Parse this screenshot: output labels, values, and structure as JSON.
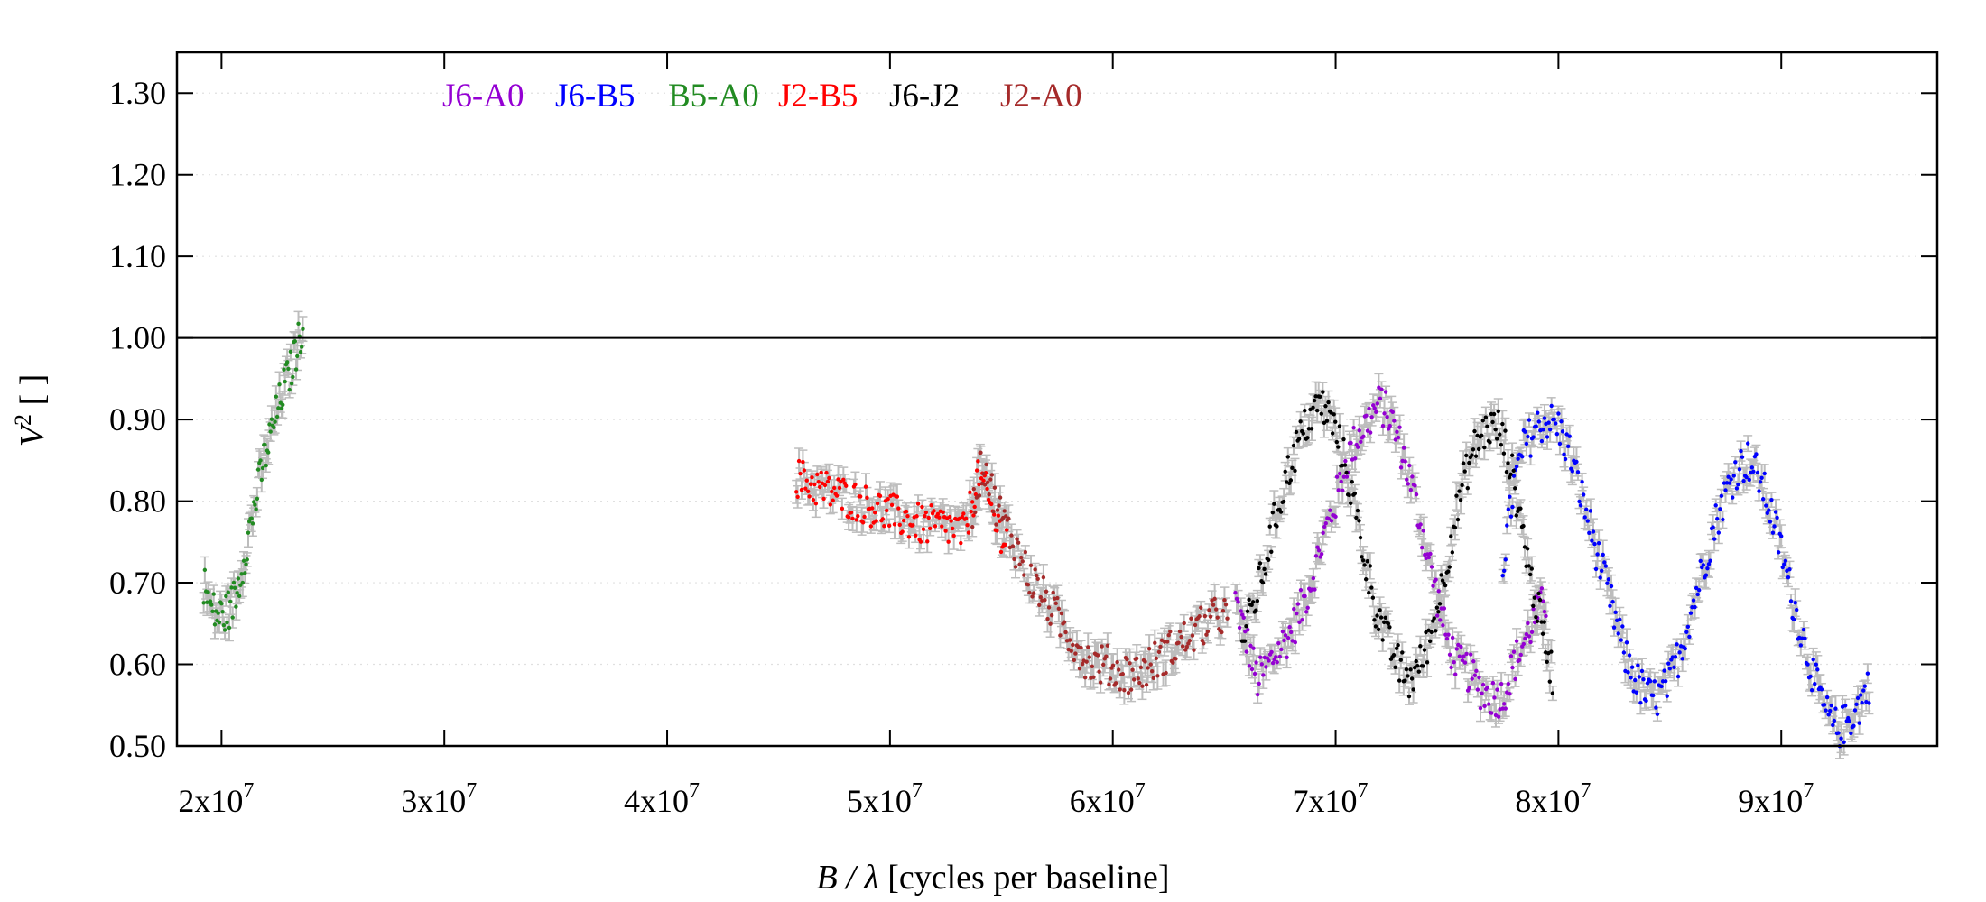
{
  "chart_data": {
    "type": "scatter",
    "xlabel_var": "B / λ",
    "xlabel_units": " [cycles per baseline]",
    "ylabel_var": "V",
    "ylabel_sup": "2",
    "ylabel_units": " [ ]",
    "xlim": [
      18000000,
      97000000
    ],
    "ylim": [
      0.5,
      1.35
    ],
    "y_ticks": [
      {
        "value": 0.5,
        "label": "0.50"
      },
      {
        "value": 0.6,
        "label": "0.60"
      },
      {
        "value": 0.7,
        "label": "0.70"
      },
      {
        "value": 0.8,
        "label": "0.80"
      },
      {
        "value": 0.9,
        "label": "0.90"
      },
      {
        "value": 1.0,
        "label": "1.00"
      },
      {
        "value": 1.1,
        "label": "1.10"
      },
      {
        "value": 1.2,
        "label": "1.20"
      },
      {
        "value": 1.3,
        "label": "1.30"
      }
    ],
    "x_ticks": [
      {
        "value": 20000000,
        "base": "2x10",
        "exp": "7"
      },
      {
        "value": 30000000,
        "base": "3x10",
        "exp": "7"
      },
      {
        "value": 40000000,
        "base": "4x10",
        "exp": "7"
      },
      {
        "value": 50000000,
        "base": "5x10",
        "exp": "7"
      },
      {
        "value": 60000000,
        "base": "6x10",
        "exp": "7"
      },
      {
        "value": 70000000,
        "base": "7x10",
        "exp": "7"
      },
      {
        "value": 80000000,
        "base": "8x10",
        "exp": "7"
      },
      {
        "value": 90000000,
        "base": "9x10",
        "exp": "7"
      }
    ],
    "reference_line": 1.0,
    "grid": "horizontal-dotted",
    "legend_position": "top-left",
    "errorbar_color": "#bdbdbd",
    "series": [
      {
        "name": "J6-A0",
        "color": "#9400d3",
        "points": [
          [
            65500000,
            0.68
          ],
          [
            66000000,
            0.63
          ],
          [
            66500000,
            0.58
          ],
          [
            67000000,
            0.6
          ],
          [
            67500000,
            0.62
          ],
          [
            68000000,
            0.64
          ],
          [
            68500000,
            0.67
          ],
          [
            69000000,
            0.71
          ],
          [
            69500000,
            0.76
          ],
          [
            70000000,
            0.8
          ],
          [
            70500000,
            0.85
          ],
          [
            71000000,
            0.88
          ],
          [
            71500000,
            0.9
          ],
          [
            72000000,
            0.92
          ],
          [
            72500000,
            0.9
          ],
          [
            73000000,
            0.86
          ],
          [
            73500000,
            0.81
          ],
          [
            74000000,
            0.75
          ],
          [
            74500000,
            0.69
          ],
          [
            75000000,
            0.63
          ],
          [
            75500000,
            0.6
          ],
          [
            76000000,
            0.59
          ],
          [
            76500000,
            0.57
          ],
          [
            77000000,
            0.56
          ],
          [
            77500000,
            0.56
          ],
          [
            78000000,
            0.6
          ],
          [
            78500000,
            0.63
          ],
          [
            79000000,
            0.66
          ],
          [
            79500000,
            0.68
          ]
        ]
      },
      {
        "name": "J6-B5",
        "color": "#0000ff",
        "points": [
          [
            77500000,
            0.72
          ],
          [
            78000000,
            0.82
          ],
          [
            78500000,
            0.87
          ],
          [
            79000000,
            0.89
          ],
          [
            79500000,
            0.9
          ],
          [
            80000000,
            0.89
          ],
          [
            80500000,
            0.86
          ],
          [
            81000000,
            0.81
          ],
          [
            81500000,
            0.76
          ],
          [
            82000000,
            0.71
          ],
          [
            82500000,
            0.66
          ],
          [
            83000000,
            0.61
          ],
          [
            83500000,
            0.58
          ],
          [
            84000000,
            0.56
          ],
          [
            84500000,
            0.56
          ],
          [
            85000000,
            0.58
          ],
          [
            85500000,
            0.62
          ],
          [
            86000000,
            0.67
          ],
          [
            86500000,
            0.72
          ],
          [
            87000000,
            0.77
          ],
          [
            87500000,
            0.81
          ],
          [
            88000000,
            0.84
          ],
          [
            88500000,
            0.85
          ],
          [
            89000000,
            0.83
          ],
          [
            89500000,
            0.79
          ],
          [
            90000000,
            0.74
          ],
          [
            90500000,
            0.68
          ],
          [
            91000000,
            0.63
          ],
          [
            91500000,
            0.58
          ],
          [
            92000000,
            0.54
          ],
          [
            92500000,
            0.52
          ],
          [
            93000000,
            0.53
          ],
          [
            93500000,
            0.55
          ],
          [
            94000000,
            0.58
          ]
        ]
      },
      {
        "name": "B5-A0",
        "color": "#228b22",
        "points": [
          [
            19200000,
            0.7
          ],
          [
            19500000,
            0.67
          ],
          [
            19800000,
            0.66
          ],
          [
            20100000,
            0.66
          ],
          [
            20400000,
            0.67
          ],
          [
            20700000,
            0.69
          ],
          [
            21000000,
            0.73
          ],
          [
            21300000,
            0.77
          ],
          [
            21600000,
            0.81
          ],
          [
            21900000,
            0.85
          ],
          [
            22200000,
            0.88
          ],
          [
            22500000,
            0.91
          ],
          [
            22800000,
            0.94
          ],
          [
            23100000,
            0.96
          ],
          [
            23400000,
            0.99
          ],
          [
            23700000,
            1.02
          ]
        ]
      },
      {
        "name": "J2-B5",
        "color": "#ff0000",
        "points": [
          [
            45800000,
            0.83
          ],
          [
            46500000,
            0.82
          ],
          [
            47500000,
            0.81
          ],
          [
            48500000,
            0.8
          ],
          [
            49500000,
            0.79
          ],
          [
            50500000,
            0.78
          ],
          [
            51500000,
            0.77
          ],
          [
            52500000,
            0.77
          ],
          [
            53300000,
            0.76
          ],
          [
            53700000,
            0.8
          ],
          [
            54000000,
            0.84
          ],
          [
            54300000,
            0.81
          ],
          [
            54800000,
            0.77
          ],
          [
            55300000,
            0.75
          ]
        ]
      },
      {
        "name": "J6-J2",
        "color": "#000000",
        "points": [
          [
            65800000,
            0.63
          ],
          [
            66300000,
            0.67
          ],
          [
            66800000,
            0.72
          ],
          [
            67300000,
            0.78
          ],
          [
            67800000,
            0.83
          ],
          [
            68300000,
            0.87
          ],
          [
            68800000,
            0.9
          ],
          [
            69300000,
            0.92
          ],
          [
            69800000,
            0.9
          ],
          [
            70300000,
            0.86
          ],
          [
            70800000,
            0.8
          ],
          [
            71300000,
            0.73
          ],
          [
            71800000,
            0.67
          ],
          [
            72300000,
            0.63
          ],
          [
            72800000,
            0.6
          ],
          [
            73300000,
            0.58
          ],
          [
            73800000,
            0.6
          ],
          [
            74300000,
            0.64
          ],
          [
            74800000,
            0.7
          ],
          [
            75300000,
            0.77
          ],
          [
            75800000,
            0.83
          ],
          [
            76300000,
            0.87
          ],
          [
            76800000,
            0.89
          ],
          [
            77300000,
            0.89
          ],
          [
            77800000,
            0.85
          ],
          [
            78300000,
            0.78
          ],
          [
            78800000,
            0.7
          ],
          [
            79300000,
            0.64
          ],
          [
            79800000,
            0.58
          ]
        ]
      },
      {
        "name": "J2-A0",
        "color": "#a52a2a",
        "points": [
          [
            53700000,
            0.79
          ],
          [
            54200000,
            0.85
          ],
          [
            54700000,
            0.8
          ],
          [
            55200000,
            0.77
          ],
          [
            55700000,
            0.74
          ],
          [
            56200000,
            0.71
          ],
          [
            56700000,
            0.69
          ],
          [
            57200000,
            0.67
          ],
          [
            57700000,
            0.65
          ],
          [
            58200000,
            0.63
          ],
          [
            58700000,
            0.61
          ],
          [
            59200000,
            0.6
          ],
          [
            59700000,
            0.6
          ],
          [
            60200000,
            0.59
          ],
          [
            60700000,
            0.59
          ],
          [
            61200000,
            0.59
          ],
          [
            61700000,
            0.6
          ],
          [
            62200000,
            0.61
          ],
          [
            62700000,
            0.62
          ],
          [
            63200000,
            0.63
          ],
          [
            63700000,
            0.64
          ],
          [
            64200000,
            0.65
          ],
          [
            64700000,
            0.66
          ],
          [
            65200000,
            0.66
          ]
        ]
      }
    ]
  }
}
